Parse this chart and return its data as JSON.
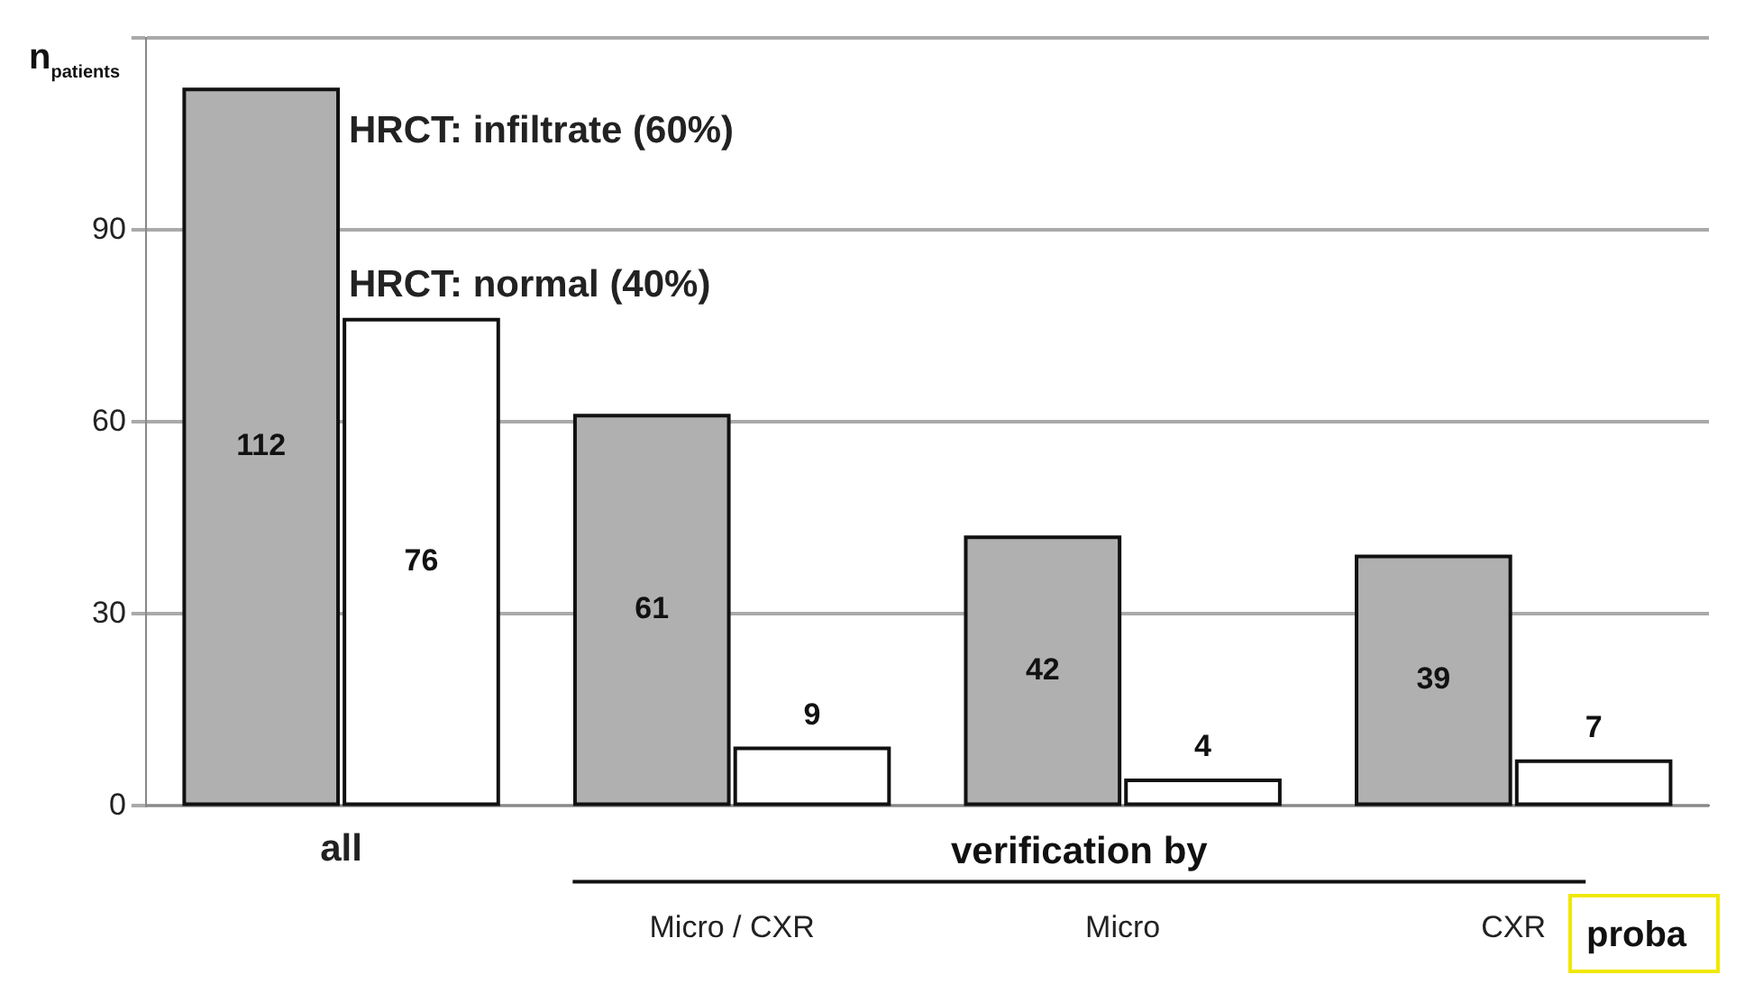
{
  "chart_data": {
    "type": "bar",
    "ylabel": "n$_{patients}$",
    "categories": [
      "all",
      "Micro / CXR",
      "Micro",
      "CXR"
    ],
    "series": [
      {
        "name": "HRCT: infiltrate (60%)",
        "color": "#b0b0b0",
        "values": [
          112,
          61,
          42,
          39
        ]
      },
      {
        "name": "HRCT: normal (40%)",
        "color": "#ffffff",
        "values": [
          76,
          9,
          4,
          7
        ]
      }
    ],
    "ylim": [
      0,
      120
    ],
    "yticks": [
      0,
      30,
      60,
      90,
      {
        "value": 120,
        "label": null
      }
    ],
    "grid": "y",
    "data_labels": true,
    "legend": false,
    "annotations": [
      "verification by",
      "proba"
    ]
  }
}
